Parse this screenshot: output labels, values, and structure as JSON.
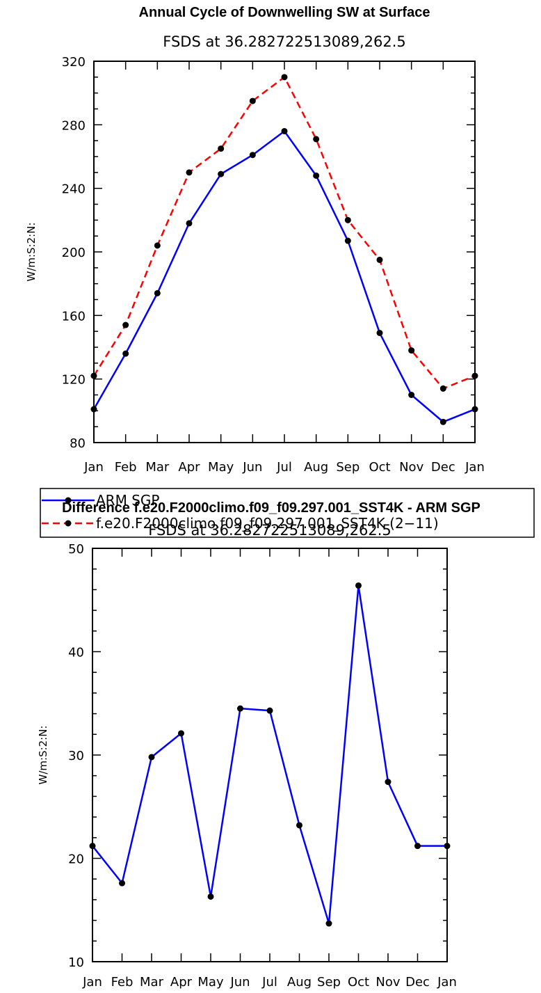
{
  "chart_data": [
    {
      "type": "line",
      "title": "Annual Cycle of Downwelling SW at Surface",
      "subtitle": "FSDS at 36.282722513089,262.5",
      "ylabel": "W/m:S:2:N:",
      "xlabel": "",
      "categories": [
        "Jan",
        "Feb",
        "Mar",
        "Apr",
        "May",
        "Jun",
        "Jul",
        "Aug",
        "Sep",
        "Oct",
        "Nov",
        "Dec",
        "Jan"
      ],
      "ylim": [
        80,
        320
      ],
      "yticks": [
        80,
        120,
        160,
        200,
        240,
        280,
        320
      ],
      "grid": false,
      "legend_position": "below",
      "series": [
        {
          "name": "ARM SGP",
          "color": "#0000ff",
          "dash": "solid",
          "values": [
            101,
            136,
            174,
            218,
            249,
            261,
            276,
            248,
            207,
            149,
            110,
            93,
            101
          ]
        },
        {
          "name": "f.e20.F2000climo.f09_f09.297.001_SST4K (2−11)",
          "color": "#ff0000",
          "dash": "dashed",
          "values": [
            122,
            154,
            204,
            250,
            265,
            295,
            310,
            271,
            220,
            195,
            138,
            114,
            122
          ]
        }
      ]
    },
    {
      "type": "line",
      "title": "Difference f.e20.F2000climo.f09_f09.297.001_SST4K - ARM SGP",
      "subtitle": "FSDS at 36.282722513089,262.5",
      "ylabel": "W/m:S:2:N:",
      "xlabel": "",
      "categories": [
        "Jan",
        "Feb",
        "Mar",
        "Apr",
        "May",
        "Jun",
        "Jul",
        "Aug",
        "Sep",
        "Oct",
        "Nov",
        "Dec",
        "Jan"
      ],
      "ylim": [
        10,
        50
      ],
      "yticks": [
        10,
        20,
        30,
        40,
        50
      ],
      "grid": false,
      "series": [
        {
          "name": "Difference",
          "color": "#0000ff",
          "dash": "solid",
          "values": [
            21.2,
            17.6,
            29.8,
            32.1,
            16.3,
            34.5,
            34.3,
            23.2,
            13.7,
            46.4,
            27.4,
            21.2,
            21.2
          ]
        }
      ]
    }
  ]
}
